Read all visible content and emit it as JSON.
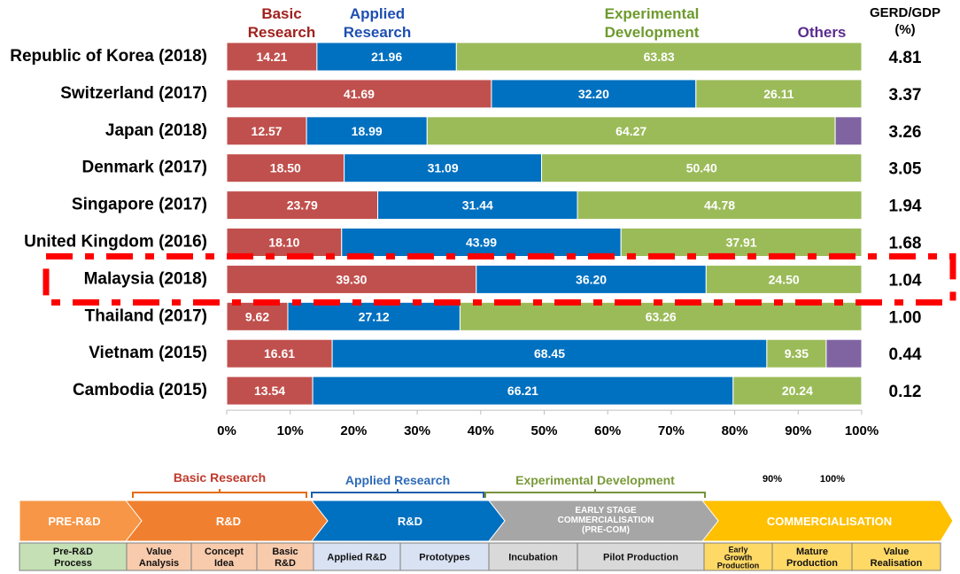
{
  "chart_data": {
    "type": "bar",
    "orientation": "horizontal",
    "stacked": true,
    "categories": [
      "Republic of Korea (2018)",
      "Switzerland (2017)",
      "Japan (2018)",
      "Denmark (2017)",
      "Singapore (2017)",
      "United Kingdom (2016)",
      "Malaysia (2018)",
      "Thailand (2017)",
      "Vietnam (2015)",
      "Cambodia (2015)"
    ],
    "series": [
      {
        "name": "Basic Research",
        "legend_lines": [
          "Basic",
          "Research"
        ],
        "color": "#C0504D",
        "values": [
          14.21,
          41.69,
          12.57,
          18.5,
          23.79,
          18.1,
          39.3,
          9.62,
          16.61,
          13.54
        ],
        "labels": [
          "14.21",
          "41.69",
          "12.57",
          "18.50",
          "23.79",
          "18.10",
          "39.30",
          "9.62",
          "16.61",
          "13.54"
        ]
      },
      {
        "name": "Applied Research",
        "legend_lines": [
          "Applied",
          "Research"
        ],
        "color": "#0070C0",
        "values": [
          21.96,
          32.2,
          18.99,
          31.09,
          31.44,
          43.99,
          36.2,
          27.12,
          68.45,
          66.21
        ],
        "labels": [
          "21.96",
          "32.20",
          "18.99",
          "31.09",
          "31.44",
          "43.99",
          "36.20",
          "27.12",
          "68.45",
          "66.21"
        ]
      },
      {
        "name": "Experimental Development",
        "legend_lines": [
          "Experimental",
          "Development"
        ],
        "color": "#9BBB59",
        "values": [
          63.83,
          26.11,
          64.27,
          50.4,
          44.78,
          37.91,
          24.5,
          63.26,
          9.35,
          20.24
        ],
        "labels": [
          "63.83",
          "26.11",
          "64.27",
          "50.40",
          "44.78",
          "37.91",
          "24.50",
          "63.26",
          "9.35",
          "20.24"
        ]
      },
      {
        "name": "Others",
        "legend_lines": [
          "Others"
        ],
        "color": "#8064A2",
        "values": [
          0,
          0,
          4.17,
          0,
          0,
          0,
          0,
          0,
          5.59,
          0
        ],
        "labels": [
          "",
          "",
          "",
          "",
          "",
          "",
          "",
          "",
          "",
          ""
        ]
      }
    ],
    "gerd_header": [
      "GERD/GDP",
      "(%)"
    ],
    "gerd_gdp": [
      "4.81",
      "3.37",
      "3.26",
      "3.05",
      "1.94",
      "1.68",
      "1.04",
      "1.00",
      "0.44",
      "0.12"
    ],
    "highlight_category": "Malaysia (2018)",
    "highlight_color": "#FF0000",
    "xlim": [
      0,
      100
    ],
    "x_ticks": [
      "0%",
      "10%",
      "20%",
      "30%",
      "40%",
      "50%",
      "60%",
      "70%",
      "80%",
      "90%",
      "100%"
    ],
    "xlabel": "",
    "ylabel": "",
    "title": ""
  },
  "pipeline": {
    "scale_start": 0,
    "scale_end": 100,
    "brackets": [
      {
        "label": "Basic Research",
        "color": "#E36C0A",
        "start": 0,
        "end": 13
      },
      {
        "label": "Applied Research",
        "color": "#1F5FA8",
        "start": 13.5,
        "end": 40
      },
      {
        "label": "Experimental Development",
        "color": "#77933C",
        "start": 40.5,
        "end": 74
      }
    ],
    "scale_marks": [
      "90%",
      "100%"
    ],
    "stages": [
      {
        "title_lines": [
          "PRE-R&D"
        ],
        "color": "#F79646",
        "start": 0,
        "end": 13
      },
      {
        "title_lines": [
          "R&D"
        ],
        "color": "#F08030",
        "start": 13,
        "end": 34
      },
      {
        "title_lines": [
          "R&D"
        ],
        "color": "#0070C0",
        "start": 34,
        "end": 54
      },
      {
        "title_lines": [
          "EARLY STAGE",
          "COMMERCIALISATION",
          "(PRE-COM)"
        ],
        "color": "#A6A6A6",
        "start": 54,
        "end": 75
      },
      {
        "title_lines": [
          "COMMERCIALISATION"
        ],
        "color": "#FFC000",
        "start": 75,
        "end": 100
      }
    ],
    "sub_boxes": [
      {
        "lines": [
          "Pre-R&D",
          "Process"
        ],
        "color": "#C4E0B4",
        "start": 0,
        "end": 11.5
      },
      {
        "lines": [
          "Value",
          "Analysis"
        ],
        "color": "#F8CBAD",
        "start": 11.5,
        "end": 18.5
      },
      {
        "lines": [
          "Concept",
          "Idea"
        ],
        "color": "#F8CBAD",
        "start": 18.5,
        "end": 26
      },
      {
        "lines": [
          "Basic",
          "R&D"
        ],
        "color": "#F8CBAD",
        "start": 26,
        "end": 32.5
      },
      {
        "lines": [
          "Applied R&D"
        ],
        "color": "#D9E2F3",
        "start": 32.5,
        "end": 41.5
      },
      {
        "lines": [
          "Prototypes"
        ],
        "color": "#D9E2F3",
        "start": 41.5,
        "end": 51
      },
      {
        "lines": [
          "Incubation"
        ],
        "color": "#D9D9D9",
        "start": 51,
        "end": 61
      },
      {
        "lines": [
          "Pilot Production"
        ],
        "color": "#D9D9D9",
        "start": 61,
        "end": 73.5
      },
      {
        "lines": [
          "Early",
          "Growth",
          "Production"
        ],
        "color": "#FFD966",
        "start": 73.5,
        "end": 80.5
      },
      {
        "lines": [
          "Mature",
          "Production"
        ],
        "color": "#FFD966",
        "start": 80.5,
        "end": 89.5
      },
      {
        "lines": [
          "Value",
          "Realisation"
        ],
        "color": "#FFD966",
        "start": 89.5,
        "end": 100
      }
    ]
  }
}
